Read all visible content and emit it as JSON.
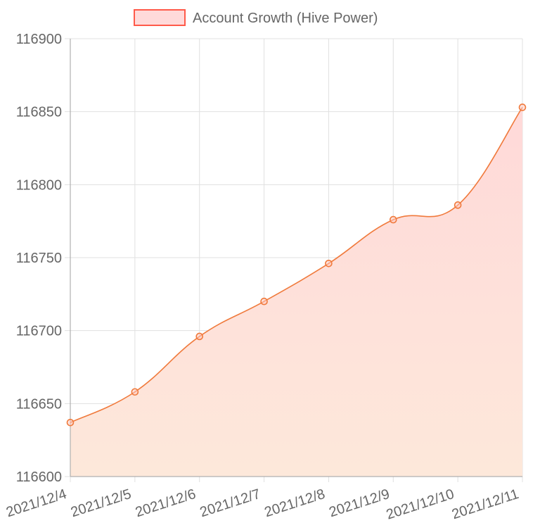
{
  "chart_data": {
    "type": "line",
    "title": "",
    "xlabel": "",
    "ylabel": "",
    "legend": {
      "position": "top",
      "entries": [
        "Account Growth (Hive Power)"
      ]
    },
    "categories": [
      "2021/12/4",
      "2021/12/5",
      "2021/12/6",
      "2021/12/7",
      "2021/12/8",
      "2021/12/9",
      "2021/12/10",
      "2021/12/11"
    ],
    "series": [
      {
        "name": "Account Growth (Hive Power)",
        "values": [
          116637,
          116658,
          116696,
          116720,
          116746,
          116776,
          116786,
          116853
        ],
        "line_color": "#f07a3c",
        "fill_top_color": "#ffd9d9",
        "fill_bottom_color": "#fde8da",
        "filled": true,
        "smooth": true
      }
    ],
    "ylim": [
      116600,
      116900
    ],
    "yticks": [
      116600,
      116650,
      116700,
      116750,
      116800,
      116850,
      116900
    ],
    "grid": true,
    "legend_box_color": "#ff5a4a",
    "legend_box_fill": "#ffdada"
  }
}
